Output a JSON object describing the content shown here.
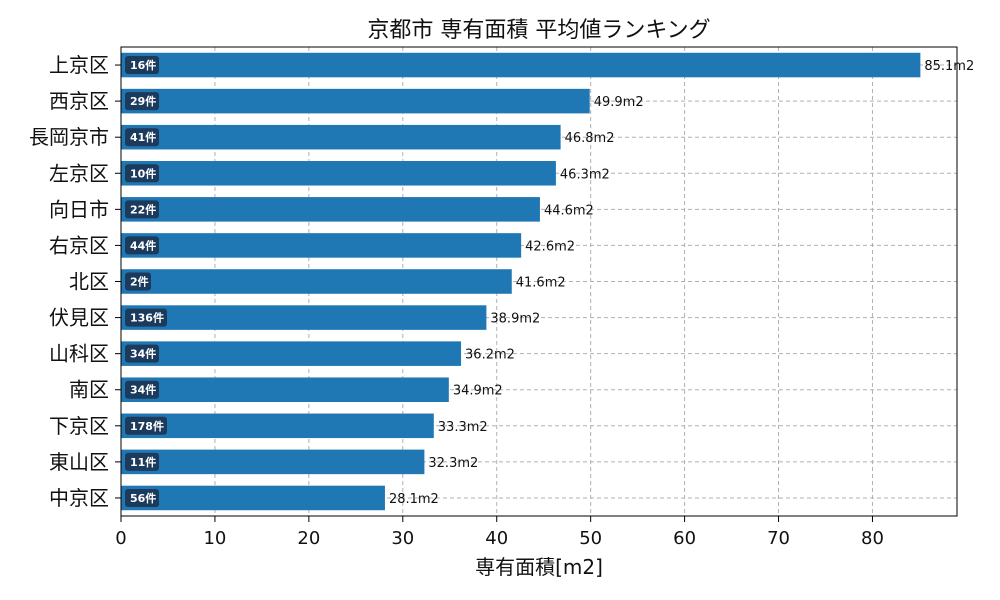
{
  "chart_data": {
    "type": "bar",
    "orientation": "horizontal",
    "title": "京都市 専有面積 平均値ランキング",
    "xlabel": "専有面積[m2]",
    "ylabel": "",
    "xlim": [
      0,
      89
    ],
    "xticks": [
      "0",
      "10",
      "20",
      "30",
      "40",
      "50",
      "60",
      "70",
      "80"
    ],
    "grid": true,
    "categories": [
      "上京区",
      "西京区",
      "長岡京市",
      "左京区",
      "向日市",
      "右京区",
      "北区",
      "伏見区",
      "山科区",
      "南区",
      "下京区",
      "東山区",
      "中京区"
    ],
    "values": [
      85.1,
      49.9,
      46.8,
      46.3,
      44.6,
      42.6,
      41.6,
      38.9,
      36.2,
      34.9,
      33.3,
      32.3,
      28.1
    ],
    "value_labels": [
      "85.1m2",
      "49.9m2",
      "46.8m2",
      "46.3m2",
      "44.6m2",
      "42.6m2",
      "41.6m2",
      "38.9m2",
      "36.2m2",
      "34.9m2",
      "33.3m2",
      "32.3m2",
      "28.1m2"
    ],
    "count_labels": [
      "16件",
      "29件",
      "41件",
      "10件",
      "22件",
      "44件",
      "2件",
      "136件",
      "34件",
      "34件",
      "178件",
      "11件",
      "56件"
    ],
    "colors": {
      "bar": "#1f77b4",
      "badge": "#1b3a5c",
      "grid": "#b0b0b0",
      "axis": "#000000"
    }
  }
}
